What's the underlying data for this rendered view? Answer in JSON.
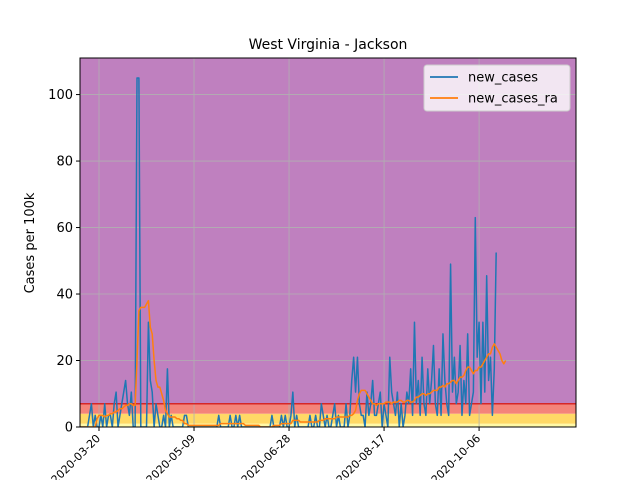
{
  "chart_data": {
    "type": "line",
    "title": "West Virginia - Jackson",
    "xlabel": "",
    "ylabel": "Cases per 100k",
    "x_start": "2020-03-10",
    "x_end": "2020-11-25",
    "xlim": [
      "2020-03-10",
      "2020-11-26"
    ],
    "ylim": [
      0,
      111
    ],
    "y_ticks": [
      0,
      20,
      40,
      60,
      80,
      100
    ],
    "x_ticks": [
      "2020-03-20",
      "2020-05-09",
      "2020-06-28",
      "2020-08-17",
      "2020-10-06"
    ],
    "grid": true,
    "legend_position": "top-right",
    "risk_bands": [
      {
        "from": 0,
        "to": 1,
        "color": "#fff9a6"
      },
      {
        "from": 1,
        "to": 4,
        "color": "#ffd966"
      },
      {
        "from": 4,
        "to": 7,
        "color": "#f4847a"
      },
      {
        "from": 7,
        "to": 111,
        "color": "#bf80bf"
      }
    ],
    "band_line": {
      "y": 7,
      "color": "#d62728"
    },
    "series": [
      {
        "name": "new_cases",
        "color": "#1f77b4",
        "values": [
          0,
          0,
          0,
          0,
          0,
          3.5,
          7,
          0,
          3.5,
          0,
          0,
          3.5,
          0,
          7,
          0,
          3.5,
          3.5,
          0,
          7,
          10.5,
          0,
          3.5,
          7,
          10.5,
          14,
          7,
          3.5,
          10.5,
          0,
          0,
          105,
          105,
          0,
          0,
          0,
          0,
          31.5,
          14,
          10.5,
          0,
          7,
          3.5,
          0,
          0,
          3.5,
          0,
          17.5,
          0,
          3.5,
          0,
          0,
          0,
          0,
          0,
          0,
          3.5,
          3.5,
          0,
          0,
          0,
          0,
          0,
          0,
          0,
          0,
          0,
          0,
          0,
          0,
          0,
          0,
          0,
          0,
          3.5,
          0,
          0,
          0,
          0,
          0,
          3.5,
          0,
          0,
          3.5,
          0,
          3.5,
          0,
          0,
          0,
          0,
          0,
          0,
          0,
          0,
          0,
          0,
          0,
          0,
          0,
          0,
          0,
          0,
          3.5,
          0,
          0,
          0,
          0,
          3.5,
          0,
          3.5,
          0,
          0,
          3.5,
          10.5,
          0,
          3.5,
          0,
          0,
          0,
          0,
          0,
          0,
          3.5,
          0,
          0,
          3.5,
          0,
          0,
          7,
          3.5,
          0,
          3.5,
          0,
          0,
          3.5,
          7,
          0,
          3.5,
          0,
          0,
          0,
          7,
          0,
          3.5,
          14,
          21,
          10.5,
          21,
          7,
          3.5,
          3.5,
          0,
          10.5,
          3.5,
          7,
          14,
          3.5,
          3.5,
          7,
          10.5,
          0,
          7,
          3.5,
          0,
          21,
          10.5,
          7,
          3.5,
          10.5,
          0,
          7,
          0,
          3.5,
          10.5,
          7,
          17.5,
          3.5,
          31.5,
          7,
          14,
          3.5,
          21,
          7,
          3.5,
          17.5,
          7,
          14,
          24.5,
          7,
          3.5,
          17.5,
          3.5,
          28,
          14,
          7,
          3.5,
          49,
          10.5,
          21,
          7,
          10.5,
          24.5,
          3.5,
          14,
          7,
          28,
          3.5,
          7,
          10.5,
          63,
          21,
          31.5,
          7,
          31.5,
          10.5,
          45.5,
          14,
          21,
          3.5,
          17.5,
          52.5
        ]
      },
      {
        "name": "new_cases_ra",
        "color": "#ff7f0e",
        "values": [
          0,
          0,
          0,
          0,
          0,
          0,
          0,
          0,
          0,
          2.5,
          3.5,
          3.5,
          3.5,
          3,
          3.5,
          3.5,
          4,
          4,
          4.5,
          4.5,
          5,
          5.5,
          5.5,
          6,
          6.5,
          6.5,
          7,
          7,
          6.5,
          6.5,
          20,
          35,
          36,
          36,
          36,
          37,
          38,
          30,
          28,
          20,
          14,
          12,
          12,
          10,
          8,
          5,
          4,
          3,
          3,
          3,
          3,
          2.5,
          2.5,
          2,
          2,
          1,
          1,
          0.5,
          0.5,
          0.5,
          0.5,
          0.5,
          0.5,
          0.5,
          0.5,
          0.5,
          0.5,
          0.5,
          0.5,
          0.5,
          0.5,
          0.5,
          0.5,
          0.5,
          1,
          1,
          1,
          1,
          1,
          1,
          1,
          1,
          1,
          1,
          1,
          1,
          1,
          0.5,
          0.5,
          0.5,
          0.5,
          0.5,
          0.5,
          0.5,
          0.5,
          0,
          0,
          0,
          0,
          0,
          0,
          0,
          0.5,
          0.5,
          0.5,
          0.5,
          1,
          1,
          1,
          1,
          1,
          1,
          2,
          2,
          2,
          2,
          1.5,
          1.5,
          1.5,
          1.5,
          1.5,
          1.5,
          1.5,
          1.5,
          1.5,
          1.5,
          2,
          2,
          2,
          2.5,
          2.5,
          2.5,
          2.5,
          2.5,
          2.5,
          3,
          3,
          3,
          3,
          3,
          3,
          3,
          3.5,
          3.5,
          4,
          5,
          8,
          10,
          11,
          11,
          11,
          10,
          9,
          8,
          7,
          7,
          6.5,
          7,
          7,
          7,
          7,
          7.5,
          7.5,
          7.5,
          7,
          7.5,
          7.5,
          7.5,
          8,
          8,
          7.5,
          7.5,
          8,
          8,
          7.5,
          7.5,
          8,
          9,
          9,
          9.5,
          10,
          10,
          9.5,
          10,
          10,
          10.5,
          11,
          11,
          11,
          12,
          12,
          12.5,
          12,
          13,
          13,
          13.5,
          14,
          14,
          13,
          14,
          15,
          15,
          15.5,
          17,
          18,
          18,
          17,
          16,
          17,
          17,
          18,
          18,
          19,
          20,
          21,
          22,
          22,
          24,
          25,
          24,
          23,
          22,
          20,
          19,
          20
        ]
      }
    ]
  }
}
